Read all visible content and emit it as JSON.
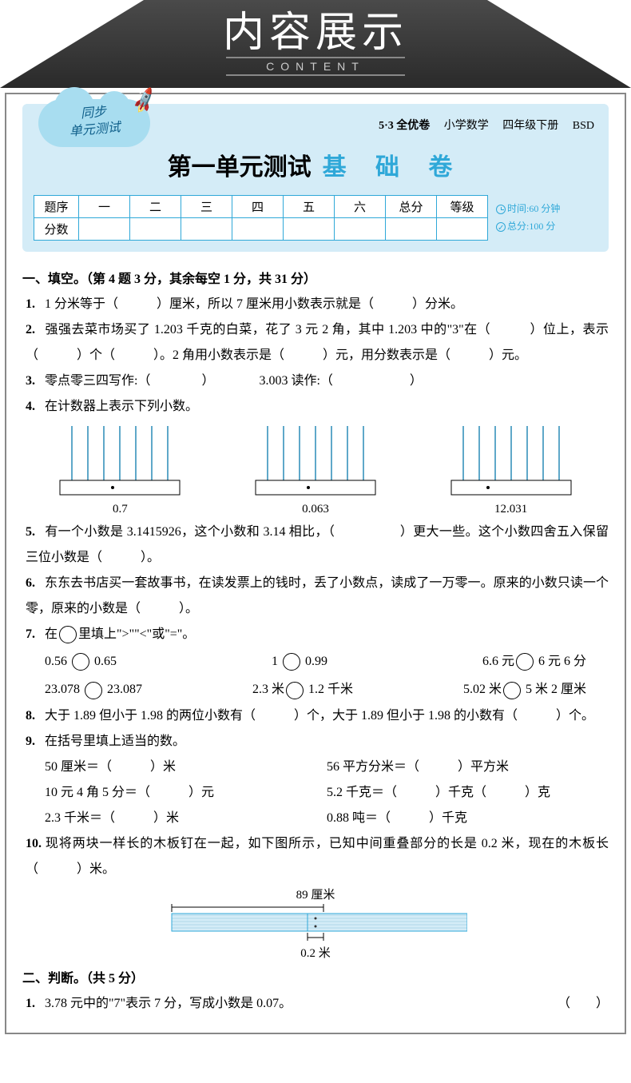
{
  "banner": {
    "title": "内容展示",
    "subtitle": "CONTENT"
  },
  "badge": {
    "line1": "同步",
    "line2": "单元测试"
  },
  "meta": {
    "series": "5·3 全优卷",
    "subject": "小学数学",
    "grade": "四年级下册",
    "edition": "BSD"
  },
  "title": {
    "main": "第一单元测试",
    "sub": "基 础 卷"
  },
  "score_table": {
    "row1": [
      "题序",
      "一",
      "二",
      "三",
      "四",
      "五",
      "六",
      "总分",
      "等级"
    ],
    "row2_head": "分数"
  },
  "timing": {
    "time": "时间:60 分钟",
    "total": "总分:100 分"
  },
  "sections": {
    "s1_title": "一、填空。（第 4 题 3 分，其余每空 1 分，共 31 分）",
    "s2_title": "二、判断。（共 5 分）"
  },
  "q1": "1 分米等于（　　　）厘米，所以 7 厘米用小数表示就是（　　　）分米。",
  "q2": "强强去菜市场买了 1.203 千克的白菜，花了 3 元 2 角，其中 1.203 中的\"3\"在（　　　）位上，表示（　　　）个（　　　）。2 角用小数表示是（　　　）元，用分数表示是（　　　）元。",
  "q3a": "零点零三四写作:（　　　　）",
  "q3b": "3.003 读作:（　　　　　　）",
  "q4": "在计数器上表示下列小数。",
  "abacus_labels": [
    "0.7",
    "0.063",
    "12.031"
  ],
  "abacus_style": {
    "rod_count": 7,
    "rod_color": "#5fa8c9",
    "base_fill": "#ffffff",
    "base_stroke": "#000000"
  },
  "q5": "有一个小数是 3.1415926，这个小数和 3.14 相比，（　　　　　）更大一些。这个小数四舍五入保留三位小数是（　　　）。",
  "q6": "东东去书店买一套故事书，在读发票上的钱时，丢了小数点，读成了一万零一。原来的小数只读一个零，原来的小数是（　　　）。",
  "q7_title": "在◯里填上\">\"\"<\"或\"=\"。",
  "q7": {
    "r1": [
      "0.56 ◯ 0.65",
      "1 ◯ 0.99",
      "6.6 元◯ 6 元 6 分"
    ],
    "r2": [
      "23.078 ◯ 23.087",
      "2.3 米◯ 1.2 千米",
      "5.02 米◯ 5 米 2 厘米"
    ]
  },
  "q8": "大于 1.89 但小于 1.98 的两位小数有（　　　）个，大于 1.89 但小于 1.98 的小数有（　　　）个。",
  "q9_title": "在括号里填上适当的数。",
  "q9": {
    "l1a": "50 厘米＝（　　　）米",
    "l1b": "56 平方分米＝（　　　）平方米",
    "l2a": "10 元 4 角 5 分＝（　　　）元",
    "l2b": "5.2 千克＝（　　　）千克（　　　）克",
    "l3a": "2.3 千米＝（　　　）米",
    "l3b": "0.88 吨＝（　　　）千克"
  },
  "q10": "现将两块一样长的木板钉在一起，如下图所示，已知中间重叠部分的长是 0.2 米，现在的木板长（　　　）米。",
  "plank": {
    "top_label": "89 厘米",
    "bottom_label": "0.2 米",
    "fill": "#d4ecf7",
    "stroke": "#2fa8d8"
  },
  "j1": "3.78 元中的\"7\"表示 7 分，写成小数是 0.07。"
}
